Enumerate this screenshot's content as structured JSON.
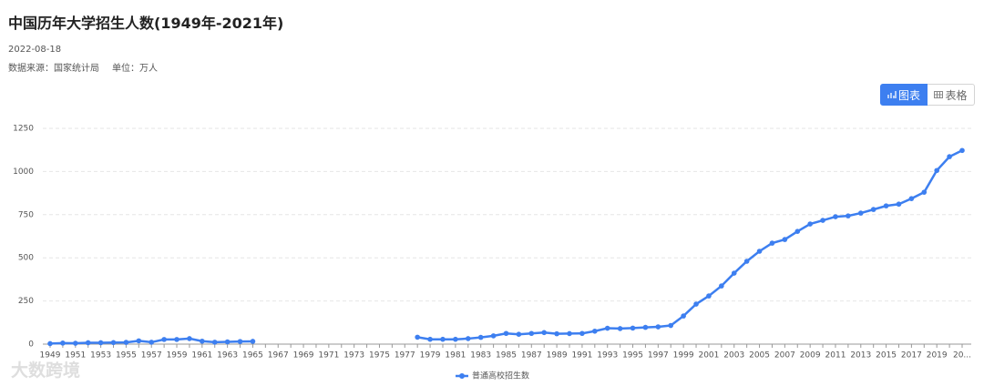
{
  "header": {
    "date": "2022-08-18",
    "source": "数据来源：国家统计局",
    "unit": "单位：万人"
  },
  "buttons": [
    "图表",
    "表格"
  ],
  "watermark": "大数跨境",
  "chart_data": {
    "type": "line",
    "title": "中国历年大学招生人数(1949年-2021年)",
    "categories": [
      "1949",
      null,
      "1951",
      null,
      "1953",
      null,
      "1955",
      null,
      "1957",
      null,
      "1959",
      null,
      "1961",
      null,
      "1963",
      null,
      "1965",
      null,
      "1967",
      null,
      "1969",
      null,
      "1971",
      null,
      "1973",
      null,
      "1975",
      null,
      "1977",
      null,
      "1979",
      null,
      "1981",
      null,
      "1983",
      null,
      "1985",
      null,
      "1987",
      null,
      "1989",
      null,
      "1991",
      null,
      "1993",
      null,
      "1995",
      null,
      "1997",
      null,
      "1999",
      null,
      "2001",
      null,
      "2003",
      null,
      "2005",
      null,
      "2007",
      null,
      "2009",
      null,
      "2011",
      null,
      "2013",
      null,
      "2015",
      null,
      "2017",
      null,
      "2019",
      null,
      "20..."
    ],
    "series": [
      {
        "name": "普通高校招生数",
        "color": "#3d7ff0",
        "values": [
          3,
          6,
          5,
          8,
          8,
          9,
          10,
          19,
          11,
          27,
          27,
          32,
          17,
          11,
          13,
          15,
          16,
          null,
          null,
          null,
          null,
          null,
          null,
          null,
          null,
          null,
          null,
          null,
          null,
          40,
          28,
          28,
          28,
          32,
          39,
          48,
          62,
          57,
          62,
          67,
          60,
          61,
          62,
          75,
          92,
          90,
          93,
          97,
          100,
          108,
          163,
          232,
          279,
          337,
          411,
          480,
          538,
          585,
          606,
          653,
          696,
          717,
          738,
          743,
          759,
          780,
          801,
          811,
          843,
          880,
          1006,
          1086,
          1122
        ]
      }
    ],
    "ylim": [
      0,
      1250
    ],
    "yticks": [
      0,
      250,
      500,
      750,
      1000,
      1250
    ],
    "grid": true
  }
}
